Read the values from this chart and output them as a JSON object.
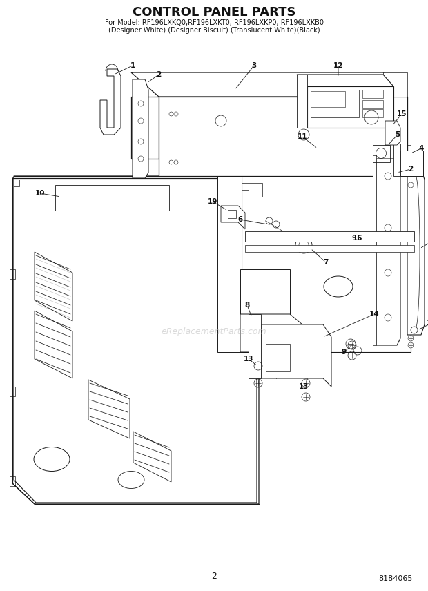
{
  "title": "CONTROL PANEL PARTS",
  "subtitle1": "For Model: RF196LXKQ0,RF196LXKT0, RF196LXKP0, RF196LXKB0",
  "subtitle2": "(Designer White) (Designer Biscuit) (Translucent White)(Black)",
  "page_number": "2",
  "doc_number": "8184065",
  "watermark": "eReplacementParts.com",
  "bg_color": "#ffffff",
  "lc": "#1a1a1a",
  "label_color": "#111111"
}
